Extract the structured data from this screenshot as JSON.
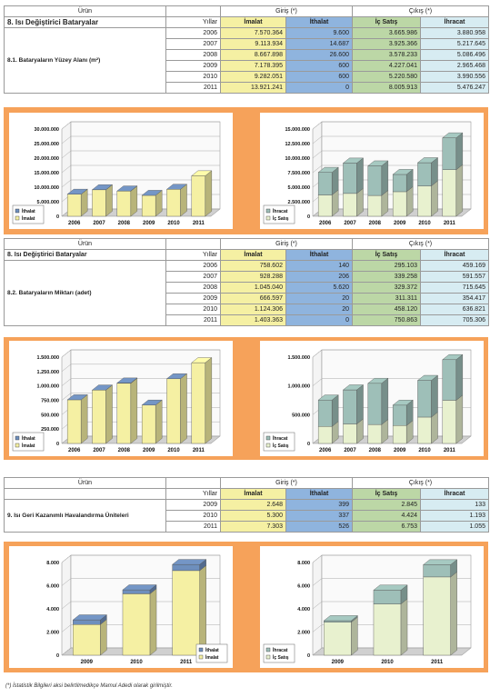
{
  "common": {
    "urun": "Ürün",
    "giris": "Giriş (*)",
    "cikis": "Çıkış (*)",
    "yillar": "Yıllar",
    "imalat": "İmalat",
    "ithalat": "İthalat",
    "ic_satis": "İç Satış",
    "ihracat": "İhracat"
  },
  "section1": {
    "title": "8. Isı Değiştirici Bataryalar",
    "row_label": "8.1. Bataryaların Yüzey Alanı (m²)",
    "rows": [
      {
        "year": "2006",
        "imalat": "7.570.364",
        "ithalat": "9.600",
        "ic_satis": "3.665.986",
        "ihracat": "3.880.958"
      },
      {
        "year": "2007",
        "imalat": "9.113.934",
        "ithalat": "14.687",
        "ic_satis": "3.925.366",
        "ihracat": "5.217.645"
      },
      {
        "year": "2008",
        "imalat": "8.667.898",
        "ithalat": "26.600",
        "ic_satis": "3.578.233",
        "ihracat": "5.086.496"
      },
      {
        "year": "2009",
        "imalat": "7.178.395",
        "ithalat": "600",
        "ic_satis": "4.227.041",
        "ihracat": "2.965.468"
      },
      {
        "year": "2010",
        "imalat": "9.282.051",
        "ithalat": "600",
        "ic_satis": "5.220.580",
        "ihracat": "3.990.556"
      },
      {
        "year": "2011",
        "imalat": "13.921.241",
        "ithalat": "0",
        "ic_satis": "8.005.913",
        "ihracat": "5.476.247"
      }
    ]
  },
  "section2": {
    "title": "8. Isı Değiştirici Bataryalar",
    "row_label": "8.2. Bataryaların Miktarı (adet)",
    "rows": [
      {
        "year": "2006",
        "imalat": "758.602",
        "ithalat": "140",
        "ic_satis": "295.103",
        "ihracat": "459.169"
      },
      {
        "year": "2007",
        "imalat": "928.288",
        "ithalat": "206",
        "ic_satis": "339.258",
        "ihracat": "591.557"
      },
      {
        "year": "2008",
        "imalat": "1.045.040",
        "ithalat": "5.620",
        "ic_satis": "329.372",
        "ihracat": "715.645"
      },
      {
        "year": "2009",
        "imalat": "666.597",
        "ithalat": "20",
        "ic_satis": "311.311",
        "ihracat": "354.417"
      },
      {
        "year": "2010",
        "imalat": "1.124.306",
        "ithalat": "20",
        "ic_satis": "458.120",
        "ihracat": "636.821"
      },
      {
        "year": "2011",
        "imalat": "1.403.363",
        "ithalat": "0",
        "ic_satis": "750.863",
        "ihracat": "705.306"
      }
    ]
  },
  "section3": {
    "title": "9. Isı Geri Kazanımlı Havalandırma Üniteleri",
    "rows": [
      {
        "year": "2009",
        "imalat": "2.648",
        "ithalat": "399",
        "ic_satis": "2.845",
        "ihracat": "133"
      },
      {
        "year": "2010",
        "imalat": "5.300",
        "ithalat": "337",
        "ic_satis": "4.424",
        "ihracat": "1.193"
      },
      {
        "year": "2011",
        "imalat": "7.303",
        "ithalat": "526",
        "ic_satis": "6.753",
        "ihracat": "1.055"
      }
    ]
  },
  "colors": {
    "band": "#f6a25a",
    "imalat_bar": "#f5f0a3",
    "ithalat_bar": "#6e8fbd",
    "icsatis_bar": "#e8f1cf",
    "ihracat_bar": "#9ebfb8"
  },
  "footnote": "(*)    İstatistik Bilgileri aksi belirtilmedikçe Mamul Adedi olarak girilmiştir.",
  "chart_data": [
    {
      "type": "bar",
      "stacked": true,
      "id": "c1",
      "categories": [
        "2006",
        "2007",
        "2008",
        "2009",
        "2010",
        "2011"
      ],
      "series": [
        {
          "name": "İmalat",
          "values": [
            7570364,
            9113934,
            8667898,
            7178395,
            9282051,
            13921241
          ],
          "color": "#f5f0a3"
        },
        {
          "name": "İthalat",
          "values": [
            9600,
            14687,
            26600,
            600,
            600,
            0
          ],
          "color": "#6e8fbd"
        }
      ],
      "yticks": [
        "0",
        "5.000.000",
        "10.000.000",
        "15.000.000",
        "20.000.000",
        "25.000.000",
        "30.000.000"
      ],
      "ylim": [
        0,
        30000000
      ],
      "legend": [
        "İthalat",
        "İmalat"
      ],
      "legend_position": "bottom-left"
    },
    {
      "type": "bar",
      "stacked": true,
      "id": "c2",
      "categories": [
        "2006",
        "2007",
        "2008",
        "2009",
        "2010",
        "2011"
      ],
      "series": [
        {
          "name": "İç Satış",
          "values": [
            3665986,
            3925366,
            3578233,
            4227041,
            5220580,
            8005913
          ],
          "color": "#e8f1cf"
        },
        {
          "name": "İhracat",
          "values": [
            3880958,
            5217645,
            5086496,
            2965468,
            3990556,
            5476247
          ],
          "color": "#9ebfb8"
        }
      ],
      "yticks": [
        "0",
        "2.500.000",
        "5.000.000",
        "7.500.000",
        "10.000.000",
        "12.500.000",
        "15.000.000"
      ],
      "ylim": [
        0,
        15000000
      ],
      "legend": [
        "İhracat",
        "İç Satış"
      ],
      "legend_position": "bottom-left"
    },
    {
      "type": "bar",
      "stacked": true,
      "id": "c3",
      "categories": [
        "2006",
        "2007",
        "2008",
        "2009",
        "2010",
        "2011"
      ],
      "series": [
        {
          "name": "İmalat",
          "values": [
            758602,
            928288,
            1045040,
            666597,
            1124306,
            1403363
          ],
          "color": "#f5f0a3"
        },
        {
          "name": "İthalat",
          "values": [
            140,
            206,
            5620,
            20,
            20,
            0
          ],
          "color": "#6e8fbd"
        }
      ],
      "yticks": [
        "0",
        "250.000",
        "500.000",
        "750.000",
        "1.000.000",
        "1.250.000",
        "1.500.000"
      ],
      "ylim": [
        0,
        1500000
      ],
      "legend": [
        "İthalat",
        "İmalat"
      ],
      "legend_position": "bottom-left"
    },
    {
      "type": "bar",
      "stacked": true,
      "id": "c4",
      "categories": [
        "2006",
        "2007",
        "2008",
        "2009",
        "2010",
        "2011"
      ],
      "series": [
        {
          "name": "İç Satış",
          "values": [
            295103,
            339258,
            329372,
            311311,
            458120,
            750863
          ],
          "color": "#e8f1cf"
        },
        {
          "name": "İhracat",
          "values": [
            459169,
            591557,
            715645,
            354417,
            636821,
            705306
          ],
          "color": "#9ebfb8"
        }
      ],
      "yticks": [
        "0",
        "500.000",
        "1.000.000",
        "1.500.000"
      ],
      "ylim": [
        0,
        1500000
      ],
      "legend": [
        "İhracat",
        "İç Satış"
      ],
      "legend_position": "bottom-left"
    },
    {
      "type": "bar",
      "stacked": true,
      "id": "c5",
      "categories": [
        "2009",
        "2010",
        "2011"
      ],
      "series": [
        {
          "name": "İmalat",
          "values": [
            2648,
            5300,
            7303
          ],
          "color": "#f5f0a3"
        },
        {
          "name": "İthalat",
          "values": [
            399,
            337,
            526
          ],
          "color": "#6e8fbd"
        }
      ],
      "yticks": [
        "0",
        "2.000",
        "4.000",
        "6.000",
        "8.000"
      ],
      "ylim": [
        0,
        8000
      ],
      "legend": [
        "İthalat",
        "İmalat"
      ],
      "legend_position": "bottom-right"
    },
    {
      "type": "bar",
      "stacked": true,
      "id": "c6",
      "categories": [
        "2009",
        "2010",
        "2011"
      ],
      "series": [
        {
          "name": "İç Satış",
          "values": [
            2845,
            4424,
            6753
          ],
          "color": "#e8f1cf"
        },
        {
          "name": "İhracat",
          "values": [
            133,
            1193,
            1055
          ],
          "color": "#9ebfb8"
        }
      ],
      "yticks": [
        "0",
        "2.000",
        "4.000",
        "6.000",
        "8.000"
      ],
      "ylim": [
        0,
        8000
      ],
      "legend": [
        "İhracat",
        "İç Satış"
      ],
      "legend_position": "bottom-left"
    }
  ]
}
